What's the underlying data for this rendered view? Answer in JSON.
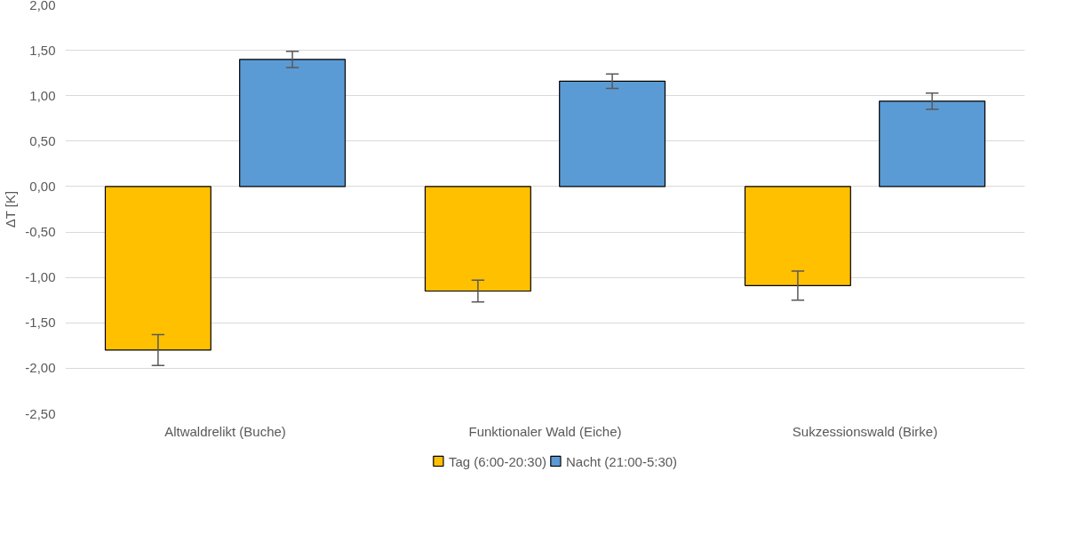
{
  "chart_data": {
    "type": "bar",
    "ylabel": "ΔT [K]",
    "categories": [
      "Altwaldrelikt (Buche)",
      "Funktionaler Wald (Eiche)",
      "Sukzessionswald (Birke)"
    ],
    "series": [
      {
        "name": "Tag (6:00-20:30)",
        "color": "#ffc000",
        "values": [
          -1.8,
          -1.15,
          -1.09
        ],
        "errors": [
          0.17,
          0.12,
          0.16
        ]
      },
      {
        "name": "Nacht (21:00-5:30)",
        "color": "#5b9bd5",
        "values": [
          1.4,
          1.16,
          0.94
        ],
        "errors": [
          0.09,
          0.08,
          0.09
        ]
      }
    ],
    "ylim": [
      -2.5,
      2.0
    ],
    "yticks": [
      {
        "value": -2.5,
        "label": "-2,50"
      },
      {
        "value": -2.0,
        "label": "-2,00"
      },
      {
        "value": -1.5,
        "label": "-1,50"
      },
      {
        "value": -1.0,
        "label": "-1,00"
      },
      {
        "value": -0.5,
        "label": "-0,50"
      },
      {
        "value": 0,
        "label": "0,00"
      },
      {
        "value": 0.5,
        "label": "0,50"
      },
      {
        "value": 1.0,
        "label": "1,00"
      },
      {
        "value": 1.5,
        "label": "1,50"
      },
      {
        "value": 2.0,
        "label": "2,00"
      }
    ],
    "grid": "y",
    "legend": "bottom"
  }
}
